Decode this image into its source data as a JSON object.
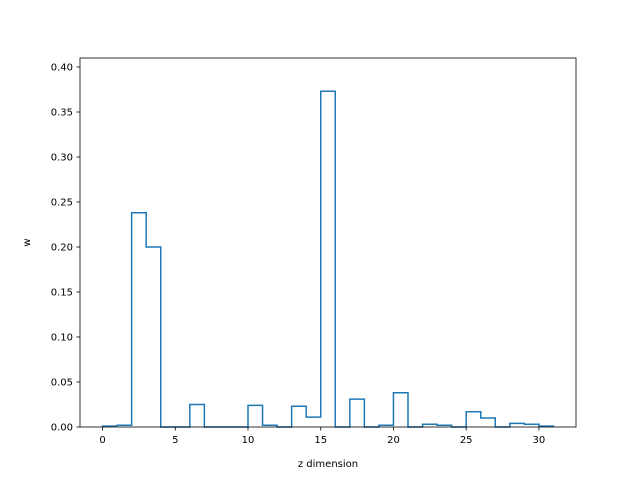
{
  "chart_data": {
    "type": "step-histogram",
    "title": "",
    "xlabel": "z dimension",
    "ylabel": "w",
    "xlim": [
      -1.55,
      32.55
    ],
    "ylim": [
      0,
      0.41
    ],
    "grid": false,
    "legend": "none",
    "line_color": "#1f77b4",
    "x_ticks": [
      0,
      5,
      10,
      15,
      20,
      25,
      30
    ],
    "x_tick_labels": [
      "0",
      "5",
      "10",
      "15",
      "20",
      "25",
      "30"
    ],
    "y_ticks": [
      0.0,
      0.05,
      0.1,
      0.15,
      0.2,
      0.25,
      0.3,
      0.35,
      0.4
    ],
    "y_tick_labels": [
      "0.00",
      "0.05",
      "0.10",
      "0.15",
      "0.20",
      "0.25",
      "0.30",
      "0.35",
      "0.40"
    ],
    "bin_edges": [
      0,
      1,
      2,
      3,
      4,
      5,
      6,
      7,
      8,
      9,
      10,
      11,
      12,
      13,
      14,
      15,
      16,
      17,
      18,
      19,
      20,
      21,
      22,
      23,
      24,
      25,
      26,
      27,
      28,
      29,
      30,
      31
    ],
    "values": [
      0.001,
      0.002,
      0.238,
      0.2,
      0.0,
      0.0,
      0.025,
      0.0,
      0.0,
      0.0,
      0.024,
      0.002,
      0.0,
      0.023,
      0.011,
      0.373,
      0.0,
      0.031,
      0.0,
      0.002,
      0.038,
      0.0,
      0.003,
      0.002,
      0.0,
      0.017,
      0.01,
      0.0,
      0.004,
      0.003,
      0.001
    ]
  }
}
